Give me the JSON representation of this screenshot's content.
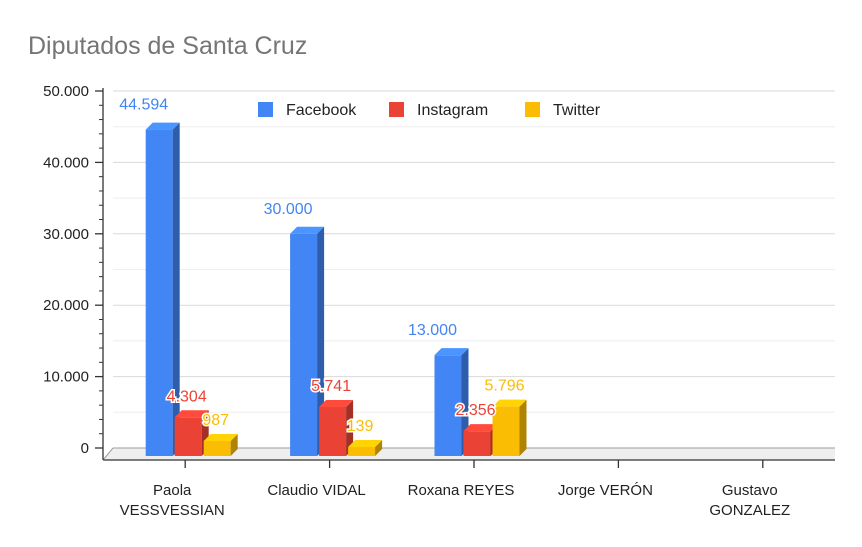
{
  "chart_data": {
    "type": "bar",
    "title": "Diputados de Santa Cruz",
    "xlabel": "",
    "ylabel": "",
    "ylim": [
      0,
      50000
    ],
    "yticks": [
      0,
      10000,
      20000,
      30000,
      40000,
      50000
    ],
    "ytick_labels": [
      "0",
      "10.000",
      "20.000",
      "30.000",
      "40.000",
      "50.000"
    ],
    "grid": true,
    "legend_position": "top",
    "categories": [
      [
        "Paola",
        "VESSVESSIAN"
      ],
      [
        "Claudio VIDAL"
      ],
      [
        "Roxana REYES"
      ],
      [
        "Jorge VERÓN"
      ],
      [
        "Gustavo",
        "GONZALEZ"
      ]
    ],
    "series": [
      {
        "name": "Facebook",
        "color": "#4285f4",
        "values": [
          44594,
          30000,
          13000,
          null,
          null
        ],
        "labels": [
          "44.594",
          "30.000",
          "13.000",
          null,
          null
        ]
      },
      {
        "name": "Instagram",
        "color": "#ea4335",
        "values": [
          4304,
          5741,
          2356,
          null,
          null
        ],
        "labels": [
          "4.304",
          "5.741",
          "2.356",
          null,
          null
        ]
      },
      {
        "name": "Twitter",
        "color": "#fbbc04",
        "values": [
          987,
          139,
          5796,
          null,
          null
        ],
        "labels": [
          "987",
          "139",
          "5.796",
          null,
          null
        ]
      }
    ]
  }
}
